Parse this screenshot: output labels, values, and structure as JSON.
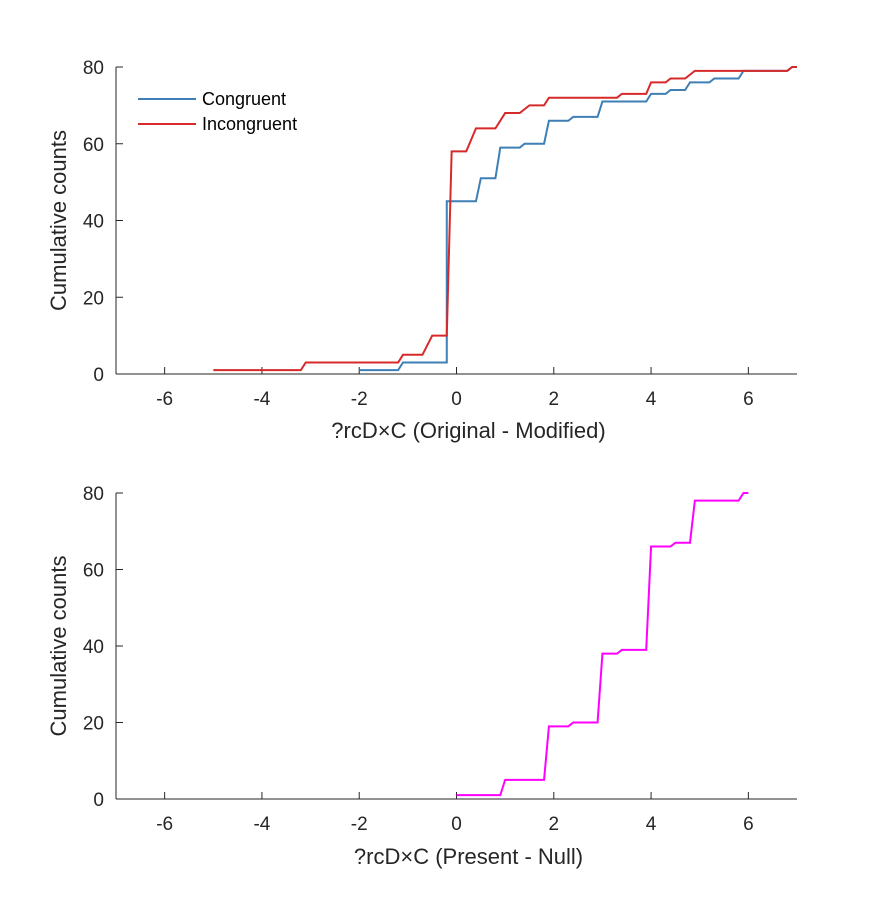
{
  "chart_data": [
    {
      "type": "line",
      "title": "",
      "xlabel": "?rcD×C (Original - Modified)",
      "ylabel": "Cumulative counts",
      "xlim": [
        -7,
        7
      ],
      "ylim": [
        0,
        80
      ],
      "xticks": [
        -6,
        -4,
        -2,
        0,
        2,
        4,
        6
      ],
      "yticks": [
        0,
        20,
        40,
        60,
        80
      ],
      "legend_position": "top-left",
      "series": [
        {
          "name": "Congruent",
          "color": "#3E7FB5",
          "points": [
            [
              -2,
              1
            ],
            [
              -1.2,
              1
            ],
            [
              -1.1,
              3
            ],
            [
              -0.2,
              3
            ],
            [
              -0.2,
              45
            ],
            [
              0.4,
              45
            ],
            [
              0.5,
              51
            ],
            [
              0.8,
              51
            ],
            [
              0.9,
              59
            ],
            [
              1.3,
              59
            ],
            [
              1.4,
              60
            ],
            [
              1.8,
              60
            ],
            [
              1.9,
              66
            ],
            [
              2.3,
              66
            ],
            [
              2.4,
              67
            ],
            [
              2.9,
              67
            ],
            [
              3.0,
              71
            ],
            [
              3.9,
              71
            ],
            [
              4.0,
              73
            ],
            [
              4.3,
              73
            ],
            [
              4.4,
              74
            ],
            [
              4.7,
              74
            ],
            [
              4.8,
              76
            ],
            [
              5.2,
              76
            ],
            [
              5.3,
              77
            ],
            [
              5.8,
              77
            ],
            [
              5.9,
              79
            ],
            [
              6.8,
              79
            ],
            [
              6.9,
              80
            ],
            [
              7.0,
              80
            ]
          ]
        },
        {
          "name": "Incongruent",
          "color": "#D62A2A",
          "points": [
            [
              -5,
              1
            ],
            [
              -3.2,
              1
            ],
            [
              -3.1,
              3
            ],
            [
              -1.2,
              3
            ],
            [
              -1.1,
              5
            ],
            [
              -0.7,
              5
            ],
            [
              -0.5,
              10
            ],
            [
              -0.2,
              10
            ],
            [
              -0.1,
              58
            ],
            [
              0.2,
              58
            ],
            [
              0.4,
              64
            ],
            [
              0.8,
              64
            ],
            [
              1.0,
              68
            ],
            [
              1.3,
              68
            ],
            [
              1.5,
              70
            ],
            [
              1.8,
              70
            ],
            [
              1.9,
              72
            ],
            [
              3.3,
              72
            ],
            [
              3.4,
              73
            ],
            [
              3.9,
              73
            ],
            [
              4.0,
              76
            ],
            [
              4.3,
              76
            ],
            [
              4.4,
              77
            ],
            [
              4.7,
              77
            ],
            [
              4.9,
              79
            ],
            [
              6.8,
              79
            ],
            [
              6.9,
              80
            ],
            [
              7.0,
              80
            ]
          ]
        }
      ]
    },
    {
      "type": "line",
      "title": "",
      "xlabel": "?rcD×C (Present - Null)",
      "ylabel": "Cumulative counts",
      "xlim": [
        -7,
        7
      ],
      "ylim": [
        0,
        80
      ],
      "xticks": [
        -6,
        -4,
        -2,
        0,
        2,
        4,
        6
      ],
      "yticks": [
        0,
        20,
        40,
        60,
        80
      ],
      "series": [
        {
          "color": "#FF00FF",
          "points": [
            [
              0,
              1
            ],
            [
              0.9,
              1
            ],
            [
              1.0,
              5
            ],
            [
              1.8,
              5
            ],
            [
              1.9,
              19
            ],
            [
              2.3,
              19
            ],
            [
              2.4,
              20
            ],
            [
              2.9,
              20
            ],
            [
              3.0,
              38
            ],
            [
              3.3,
              38
            ],
            [
              3.4,
              39
            ],
            [
              3.9,
              39
            ],
            [
              4.0,
              66
            ],
            [
              4.4,
              66
            ],
            [
              4.5,
              67
            ],
            [
              4.8,
              67
            ],
            [
              4.9,
              78
            ],
            [
              5.8,
              78
            ],
            [
              5.9,
              80
            ],
            [
              6.0,
              80
            ]
          ]
        }
      ]
    }
  ]
}
